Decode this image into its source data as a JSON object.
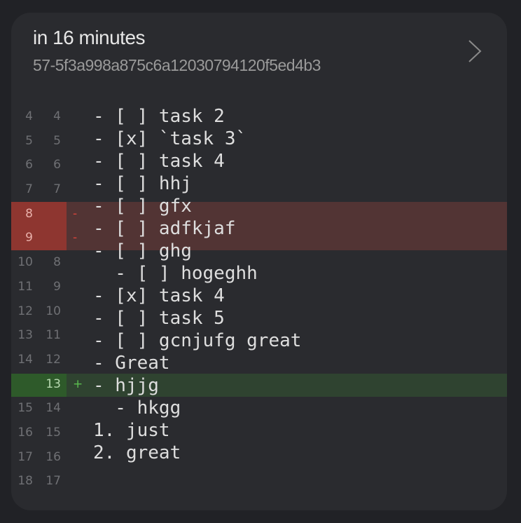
{
  "header": {
    "title": "in 16 minutes",
    "commit": "57-5f3a998a875c6a12030794120f5ed4b3",
    "chevron_icon": "chevron-right-icon"
  },
  "colors": {
    "deleted_gutter": "#8e3630",
    "deleted_line": "#523434",
    "added_gutter": "#2e5a2a",
    "added_line": "#2f4330"
  },
  "gutter": [
    {
      "old": "4",
      "new": "4",
      "mark": "",
      "type": "ctx"
    },
    {
      "old": "5",
      "new": "5",
      "mark": "",
      "type": "ctx"
    },
    {
      "old": "6",
      "new": "6",
      "mark": "",
      "type": "ctx"
    },
    {
      "old": "7",
      "new": "7",
      "mark": "",
      "type": "ctx"
    },
    {
      "old": "8",
      "new": "",
      "mark": "-",
      "type": "del"
    },
    {
      "old": "9",
      "new": "",
      "mark": "-",
      "type": "del"
    },
    {
      "old": "10",
      "new": "8",
      "mark": "",
      "type": "ctx"
    },
    {
      "old": "11",
      "new": "9",
      "mark": "",
      "type": "ctx"
    },
    {
      "old": "12",
      "new": "10",
      "mark": "",
      "type": "ctx"
    },
    {
      "old": "13",
      "new": "11",
      "mark": "",
      "type": "ctx"
    },
    {
      "old": "14",
      "new": "12",
      "mark": "",
      "type": "ctx"
    },
    {
      "old": "",
      "new": "13",
      "mark": "+",
      "type": "add"
    },
    {
      "old": "15",
      "new": "14",
      "mark": "",
      "type": "ctx"
    },
    {
      "old": "16",
      "new": "15",
      "mark": "",
      "type": "ctx"
    },
    {
      "old": "17",
      "new": "16",
      "mark": "",
      "type": "ctx"
    },
    {
      "old": "18",
      "new": "17",
      "mark": "",
      "type": "ctx"
    }
  ],
  "lines": [
    "- [ ] task 2",
    "- [x] `task 3`",
    "- [ ] task 4",
    "- [ ] hhj",
    "- [ ] gfx",
    "- [ ] adfkjaf",
    "- [ ] ghg",
    "  - [ ] hogeghh",
    "- [x] task 4",
    "- [ ] task 5",
    "- [ ] gcnjufg great",
    "- Great",
    "- hjjg",
    "  - hkgg",
    "1. just",
    "2. great"
  ]
}
